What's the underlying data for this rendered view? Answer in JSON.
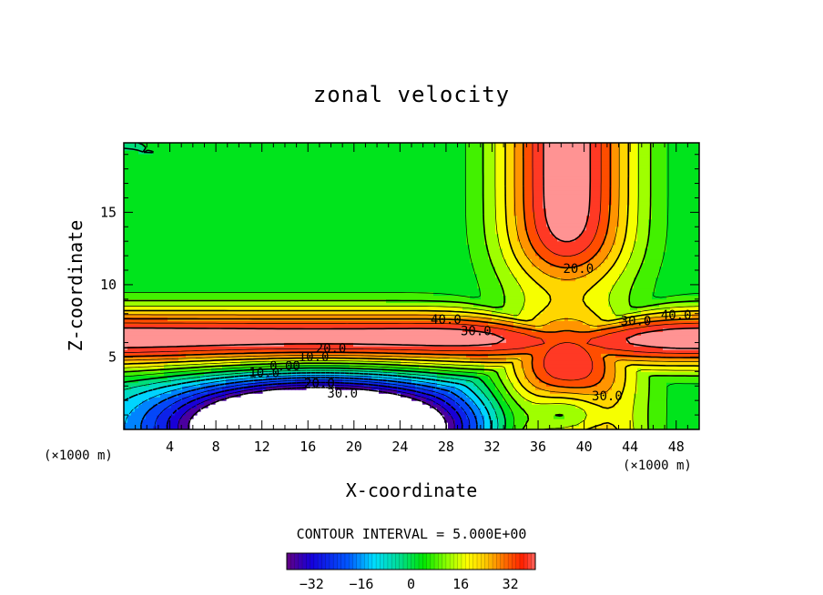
{
  "chart_data": {
    "type": "heatmap",
    "title": "zonal velocity",
    "xlabel": "X-coordinate",
    "ylabel": "Z-coordinate",
    "x_unit_label": "(×1000 m)",
    "xlim": [
      0,
      50
    ],
    "ylim": [
      0,
      19.8
    ],
    "x_ticks": [
      4,
      8,
      12,
      16,
      20,
      24,
      28,
      32,
      36,
      40,
      44,
      48
    ],
    "y_ticks": [
      5,
      10,
      15
    ],
    "contour_interval_label": "CONTOUR INTERVAL = 5.000E+00",
    "contour_labels": [
      {
        "text": "40.0",
        "x": 28.0,
        "y": 7.3
      },
      {
        "text": "30.0",
        "x": 30.6,
        "y": 6.5
      },
      {
        "text": "20.0",
        "x": 18.0,
        "y": 5.3
      },
      {
        "text": "10.0",
        "x": 16.5,
        "y": 4.7
      },
      {
        "text": "0.00",
        "x": 14.0,
        "y": 4.1
      },
      {
        "text": "10.0",
        "x": 12.2,
        "y": 3.6
      },
      {
        "text": "20.0",
        "x": 17.0,
        "y": 2.9
      },
      {
        "text": "30.0",
        "x": 19.0,
        "y": 2.2
      },
      {
        "text": "20.0",
        "x": 39.5,
        "y": 10.8
      },
      {
        "text": "30.0",
        "x": 44.5,
        "y": 7.2
      },
      {
        "text": "40.0",
        "x": 48.0,
        "y": 7.6
      },
      {
        "text": "30.0",
        "x": 42.0,
        "y": 2.0
      }
    ],
    "colorbar": {
      "ticks": [
        -32,
        -16,
        0,
        16,
        32
      ],
      "range": [
        -40,
        40
      ]
    },
    "field_description_points": {
      "note_min": -40,
      "note_max": 45
    }
  }
}
